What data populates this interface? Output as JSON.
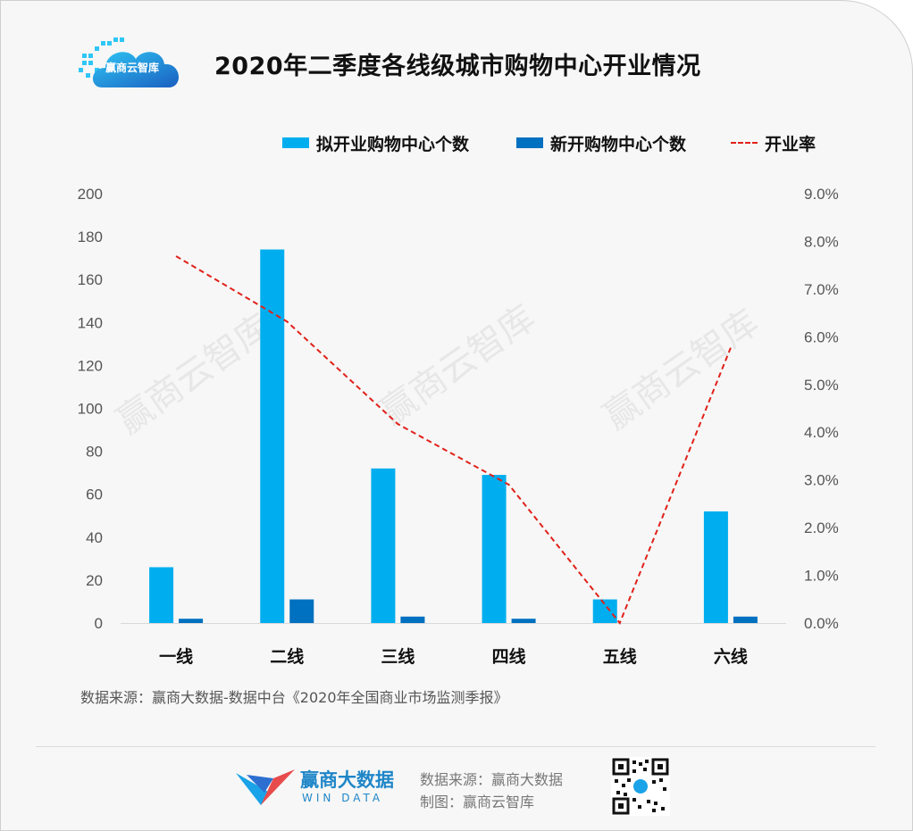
{
  "header": {
    "logo_text": "赢商云智库",
    "title": "2020年二季度各线级城市购物中心开业情况"
  },
  "legend": {
    "items": [
      {
        "label": "拟开业购物中心个数",
        "color": "#00aeef",
        "kind": "bar"
      },
      {
        "label": "新开购物中心个数",
        "color": "#0070c0",
        "kind": "bar"
      },
      {
        "label": "开业率",
        "color": "#e0211a",
        "kind": "dashed-line"
      }
    ]
  },
  "chart_data": {
    "type": "bar",
    "title": "2020年二季度各线级城市购物中心开业情况",
    "categories": [
      "一线",
      "二线",
      "三线",
      "四线",
      "五线",
      "六线"
    ],
    "series": [
      {
        "name": "拟开业购物中心个数",
        "type": "bar",
        "axis": "left",
        "values": [
          26,
          174,
          72,
          69,
          11,
          52
        ]
      },
      {
        "name": "新开购物中心个数",
        "type": "bar",
        "axis": "left",
        "values": [
          2,
          11,
          3,
          2,
          0,
          3
        ]
      },
      {
        "name": "开业率",
        "type": "line",
        "axis": "right",
        "values": [
          7.69,
          6.32,
          4.17,
          2.9,
          0.0,
          5.77
        ]
      }
    ],
    "y_left": {
      "min": 0,
      "max": 200,
      "step": 20,
      "ticks": [
        "0",
        "20",
        "40",
        "60",
        "80",
        "100",
        "120",
        "140",
        "160",
        "180",
        "200"
      ]
    },
    "y_right": {
      "min": 0,
      "max": 9,
      "step": 1,
      "ticks": [
        "0.0%",
        "1.0%",
        "2.0%",
        "3.0%",
        "4.0%",
        "5.0%",
        "6.0%",
        "7.0%",
        "8.0%",
        "9.0%"
      ]
    },
    "grid": false,
    "legend_position": "top-right",
    "watermark": "赢商云智库"
  },
  "source_note": "数据来源：赢商大数据-数据中台《2020年全国商业市场监测季报》",
  "footer": {
    "brand_name": "赢商大数据",
    "brand_sub": "WIN DATA",
    "source": "数据来源：赢商大数据",
    "maker": "制图：赢商云智库"
  },
  "colors": {
    "bar_light": "#00aeef",
    "bar_dark": "#0070c0",
    "line": "#e0211a",
    "axis_text": "#555555"
  }
}
